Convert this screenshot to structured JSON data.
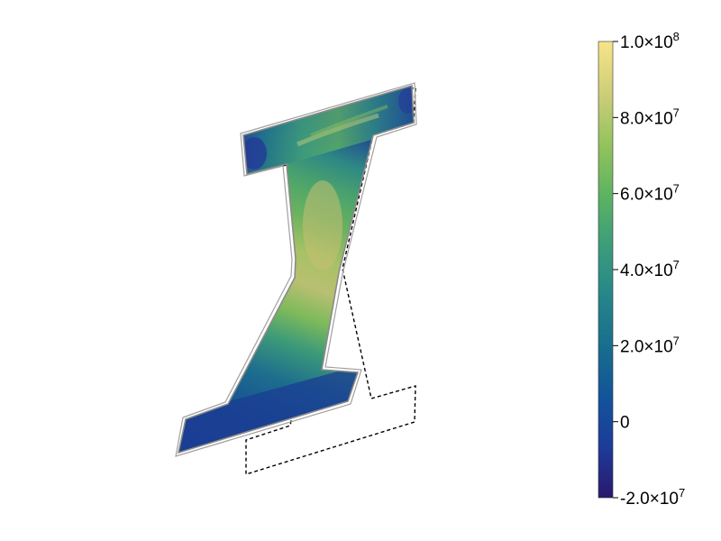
{
  "chart_data": {
    "type": "heatmap",
    "title": "",
    "colorbar": {
      "range": [
        -20000000,
        100000000
      ],
      "colormap": [
        "#2a186c",
        "#1d3b9a",
        "#12549a",
        "#186d8e",
        "#25858a",
        "#3b9c7c",
        "#5cb262",
        "#92c25c",
        "#cbcd78",
        "#f8e488"
      ],
      "ticks": [
        {
          "value": 100000000,
          "mantissa": "1.0×10",
          "exp": "8"
        },
        {
          "value": 80000000,
          "mantissa": "8.0×10",
          "exp": "7"
        },
        {
          "value": 60000000,
          "mantissa": "6.0×10",
          "exp": "7"
        },
        {
          "value": 40000000,
          "mantissa": "4.0×10",
          "exp": "7"
        },
        {
          "value": 20000000,
          "mantissa": "2.0×10",
          "exp": "7"
        },
        {
          "value": 0,
          "mantissa": "0",
          "exp": ""
        },
        {
          "value": -20000000,
          "mantissa": "-2.0×10",
          "exp": "7"
        }
      ]
    },
    "plot": {
      "shapes": [
        "deformed-body-colored-by-stress",
        "undeformed-outline-dashed",
        "deformed-outline-gray"
      ]
    }
  }
}
